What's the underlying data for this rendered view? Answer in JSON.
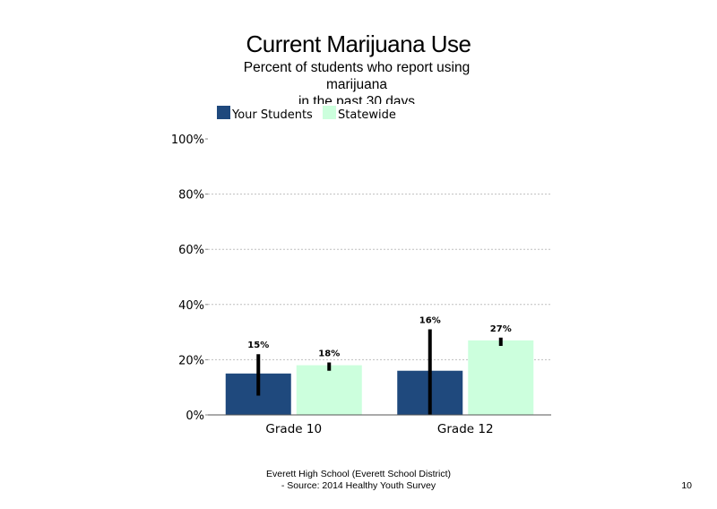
{
  "slide": {
    "title": "Current Marijuana Use",
    "subtitle_lines": [
      "Percent of students who report using",
      "marijuana",
      "in the past 30 days"
    ],
    "footer_lines": [
      "Everett High School (Everett School District)",
      "- Source: 2014 Healthy Youth Survey"
    ],
    "page_number": "10"
  },
  "colors": {
    "your_students": "#1f497d",
    "statewide": "#ccffdd",
    "grid": "#bfbfbf",
    "error_bar": "#000000"
  },
  "chart_data": {
    "type": "bar",
    "title": "Current Marijuana Use",
    "subtitle": "Percent of students who report using marijuana in the past 30 days",
    "categories": [
      "Grade 10",
      "Grade 12"
    ],
    "series": [
      {
        "name": "Your Students",
        "values": [
          15,
          16
        ],
        "labels": [
          "15%",
          "16%"
        ],
        "error_low": [
          7,
          0
        ],
        "error_high": [
          22,
          31
        ]
      },
      {
        "name": "Statewide",
        "values": [
          18,
          27
        ],
        "labels": [
          "18%",
          "27%"
        ],
        "error_low": [
          16,
          25
        ],
        "error_high": [
          19,
          28
        ]
      }
    ],
    "ylim": [
      0,
      100
    ],
    "yticks": [
      0,
      20,
      40,
      60,
      80,
      100
    ],
    "ytick_labels": [
      "0%",
      "20%",
      "40%",
      "60%",
      "80%",
      "100%"
    ],
    "grid": "dashed horizontal",
    "legend_position": "top-left"
  }
}
